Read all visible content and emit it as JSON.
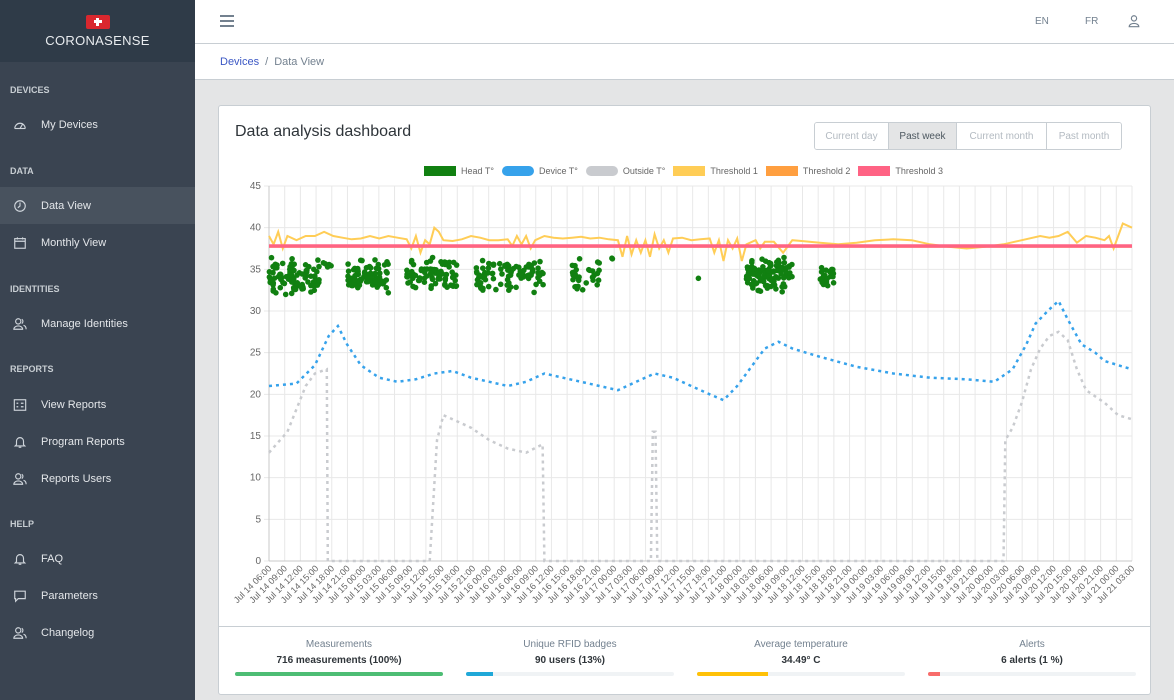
{
  "app": {
    "brand": "CORONASENSE"
  },
  "sidebar": {
    "sections": [
      {
        "title": "DEVICES",
        "items": [
          {
            "label": "My Devices",
            "icon": "gauge-icon"
          }
        ]
      },
      {
        "title": "DATA",
        "items": [
          {
            "label": "Data View",
            "icon": "clock-icon",
            "active": true
          },
          {
            "label": "Monthly View",
            "icon": "calendar-icon"
          }
        ]
      },
      {
        "title": "IDENTITIES",
        "items": [
          {
            "label": "Manage Identities",
            "icon": "users-icon"
          }
        ]
      },
      {
        "title": "REPORTS",
        "items": [
          {
            "label": "View Reports",
            "icon": "grid-icon"
          },
          {
            "label": "Program Reports",
            "icon": "bell-icon"
          },
          {
            "label": "Reports Users",
            "icon": "users-icon"
          }
        ]
      },
      {
        "title": "HELP",
        "items": [
          {
            "label": "FAQ",
            "icon": "bell-icon"
          },
          {
            "label": "Parameters",
            "icon": "chat-icon"
          },
          {
            "label": "Changelog",
            "icon": "users-icon"
          }
        ]
      }
    ]
  },
  "header": {
    "lang_en": "EN",
    "lang_fr": "FR"
  },
  "breadcrumb": {
    "link": "Devices",
    "separator": "/",
    "current": "Data View"
  },
  "dashboard": {
    "title": "Data analysis dashboard",
    "periods": [
      {
        "label": "Current day",
        "active": false
      },
      {
        "label": "Past week",
        "active": true
      },
      {
        "label": "Current month",
        "active": false
      },
      {
        "label": "Past month",
        "active": false
      }
    ]
  },
  "chart_data": {
    "type": "line",
    "ylim": [
      0,
      45
    ],
    "yticks": [
      0,
      5,
      10,
      15,
      20,
      25,
      30,
      35,
      40,
      45
    ],
    "grid": true,
    "legend_position": "top",
    "x_categories": [
      "Jul 14 06:00",
      "Jul 14 09:00",
      "Jul 14 12:00",
      "Jul 14 15:00",
      "Jul 14 18:00",
      "Jul 14 21:00",
      "Jul 15 00:00",
      "Jul 15 03:00",
      "Jul 15 06:00",
      "Jul 15 09:00",
      "Jul 15 12:00",
      "Jul 15 15:00",
      "Jul 15 18:00",
      "Jul 15 21:00",
      "Jul 16 00:00",
      "Jul 16 03:00",
      "Jul 16 06:00",
      "Jul 16 09:00",
      "Jul 16 12:00",
      "Jul 16 15:00",
      "Jul 16 18:00",
      "Jul 16 21:00",
      "Jul 17 00:00",
      "Jul 17 03:00",
      "Jul 17 06:00",
      "Jul 17 09:00",
      "Jul 17 12:00",
      "Jul 17 15:00",
      "Jul 17 18:00",
      "Jul 17 21:00",
      "Jul 18 00:00",
      "Jul 18 03:00",
      "Jul 18 06:00",
      "Jul 18 09:00",
      "Jul 18 12:00",
      "Jul 18 15:00",
      "Jul 18 18:00",
      "Jul 18 21:00",
      "Jul 19 00:00",
      "Jul 19 03:00",
      "Jul 19 06:00",
      "Jul 19 09:00",
      "Jul 19 12:00",
      "Jul 19 15:00",
      "Jul 19 18:00",
      "Jul 19 21:00",
      "Jul 20 00:00",
      "Jul 20 03:00",
      "Jul 20 06:00",
      "Jul 20 09:00",
      "Jul 20 12:00",
      "Jul 20 15:00",
      "Jul 20 18:00",
      "Jul 20 21:00",
      "Jul 21 00:00",
      "Jul 21 03:00"
    ],
    "series": [
      {
        "name": "Head T°",
        "color": "#118011",
        "style": "points",
        "clusters": [
          [
            0,
            5.5,
            34.2,
            2.2,
            90
          ],
          [
            5.8,
            6.8,
            35.5,
            1.2,
            6
          ],
          [
            8.6,
            13,
            34.3,
            2.0,
            85
          ],
          [
            15,
            20.5,
            34.5,
            2.0,
            80
          ],
          [
            22.5,
            30,
            34.3,
            2.0,
            90
          ],
          [
            33,
            36,
            34.3,
            2.0,
            30
          ],
          [
            37,
            37.5,
            36.5,
            0.3,
            2
          ],
          [
            46,
            47,
            34,
            0.3,
            1
          ],
          [
            52,
            57,
            34.5,
            2.2,
            110
          ],
          [
            60,
            61.5,
            34,
            1.5,
            25
          ]
        ]
      },
      {
        "name": "Device T°",
        "color": "#36a2eb",
        "style": "dashed",
        "values": [
          [
            0,
            21
          ],
          [
            3,
            21.3
          ],
          [
            5,
            23.5
          ],
          [
            6.5,
            27
          ],
          [
            7.5,
            28.2
          ],
          [
            8.5,
            26
          ],
          [
            10,
            23.5
          ],
          [
            12,
            22
          ],
          [
            14,
            21.5
          ],
          [
            16,
            21.8
          ],
          [
            18,
            22.5
          ],
          [
            20,
            22.8
          ],
          [
            22,
            22
          ],
          [
            24,
            21.5
          ],
          [
            26,
            21
          ],
          [
            28,
            21.5
          ],
          [
            30,
            22.5
          ],
          [
            32,
            22
          ],
          [
            34,
            21.5
          ],
          [
            36,
            21
          ],
          [
            38,
            20.5
          ],
          [
            40,
            21.5
          ],
          [
            42,
            22.5
          ],
          [
            44,
            22
          ],
          [
            46,
            21
          ],
          [
            48,
            20
          ],
          [
            49.5,
            19.3
          ],
          [
            51,
            21
          ],
          [
            52,
            22.5
          ],
          [
            54,
            25.5
          ],
          [
            55.5,
            26.3
          ],
          [
            57,
            25.5
          ],
          [
            60,
            24.5
          ],
          [
            64,
            23.3
          ],
          [
            68,
            22.5
          ],
          [
            72,
            22
          ],
          [
            76,
            21.8
          ],
          [
            79,
            21.5
          ],
          [
            81,
            23
          ],
          [
            82.5,
            26
          ],
          [
            83.5,
            28.5
          ],
          [
            85,
            30.2
          ],
          [
            86,
            31.2
          ],
          [
            87,
            29
          ],
          [
            88.5,
            26
          ],
          [
            90,
            25
          ],
          [
            91,
            24
          ],
          [
            92.5,
            23.5
          ],
          [
            94,
            23
          ]
        ]
      },
      {
        "name": "Outside T°",
        "color": "#c9cbcf",
        "style": "dashed",
        "values": [
          [
            0,
            13
          ],
          [
            2,
            15.5
          ],
          [
            4,
            21
          ],
          [
            5,
            22.5
          ],
          [
            6.3,
            23
          ],
          [
            6.4,
            0
          ],
          [
            17.5,
            0
          ],
          [
            18.3,
            14.5
          ],
          [
            19,
            17.5
          ],
          [
            20,
            17
          ],
          [
            22,
            16
          ],
          [
            24,
            14.5
          ],
          [
            26,
            13.5
          ],
          [
            28,
            13
          ],
          [
            29.8,
            14
          ],
          [
            30,
            0
          ],
          [
            41.6,
            0
          ],
          [
            41.8,
            15.5
          ],
          [
            42.1,
            15.5
          ],
          [
            42.3,
            0
          ],
          [
            80,
            0
          ],
          [
            80.2,
            14.5
          ],
          [
            81,
            16
          ],
          [
            82,
            19
          ],
          [
            83,
            23
          ],
          [
            84,
            25.5
          ],
          [
            85,
            27
          ],
          [
            86,
            27.5
          ],
          [
            87,
            26.5
          ],
          [
            88,
            23
          ],
          [
            89,
            20.5
          ],
          [
            91,
            19
          ],
          [
            92.5,
            17.5
          ],
          [
            94,
            17
          ]
        ]
      },
      {
        "name": "Threshold 1",
        "color": "#ffcd56",
        "style": "solid",
        "values": [
          [
            0,
            39
          ],
          [
            0.5,
            38
          ],
          [
            1,
            39.5
          ],
          [
            1.5,
            37.5
          ],
          [
            2,
            39
          ],
          [
            3,
            38.5
          ],
          [
            4,
            39
          ],
          [
            5,
            39
          ],
          [
            6,
            39.5
          ],
          [
            7,
            39
          ],
          [
            8,
            38.8
          ],
          [
            9,
            38.6
          ],
          [
            10,
            38.7
          ],
          [
            11,
            39
          ],
          [
            12,
            38.7
          ],
          [
            13,
            39
          ],
          [
            14,
            38.8
          ],
          [
            15,
            38.6
          ],
          [
            15.5,
            37.5
          ],
          [
            16,
            39
          ],
          [
            16.5,
            37
          ],
          [
            17,
            38.5
          ],
          [
            17.5,
            38
          ],
          [
            18,
            40
          ],
          [
            18.5,
            39.5
          ],
          [
            19,
            38.5
          ],
          [
            20,
            38.4
          ],
          [
            21,
            38.6
          ],
          [
            22,
            39
          ],
          [
            23,
            38.8
          ],
          [
            24,
            38.5
          ],
          [
            25,
            38.5
          ],
          [
            26,
            38.6
          ],
          [
            26.5,
            37.8
          ],
          [
            27,
            39
          ],
          [
            27.5,
            38
          ],
          [
            28,
            39
          ],
          [
            28.5,
            37.5
          ],
          [
            29,
            38.5
          ],
          [
            30,
            39
          ],
          [
            31,
            38.8
          ],
          [
            32,
            38.7
          ],
          [
            33,
            38.8
          ],
          [
            34,
            38.9
          ],
          [
            35,
            38.7
          ],
          [
            36,
            38.8
          ],
          [
            37,
            38.6
          ],
          [
            38,
            38.5
          ],
          [
            38.5,
            36.5
          ],
          [
            39,
            39
          ],
          [
            39.5,
            36.8
          ],
          [
            40,
            38.5
          ],
          [
            40.5,
            37
          ],
          [
            41,
            38.5
          ],
          [
            41.5,
            36.5
          ],
          [
            42,
            39.2
          ],
          [
            42.5,
            37.5
          ],
          [
            43,
            38.5
          ],
          [
            43.5,
            37
          ],
          [
            44,
            38.7
          ],
          [
            45,
            38.8
          ],
          [
            46,
            38.5
          ],
          [
            47,
            38.6
          ],
          [
            48,
            38.7
          ],
          [
            48.5,
            37
          ],
          [
            49,
            38.5
          ],
          [
            49.5,
            36
          ],
          [
            50,
            38.5
          ],
          [
            50.5,
            37.5
          ],
          [
            51,
            38.7
          ],
          [
            51.5,
            36
          ],
          [
            52,
            38
          ],
          [
            53,
            38.5
          ],
          [
            53.5,
            37.5
          ],
          [
            54,
            38.3
          ],
          [
            55,
            38.3
          ],
          [
            56,
            37
          ],
          [
            57,
            38.5
          ],
          [
            58,
            38.4
          ],
          [
            60,
            38.2
          ],
          [
            62,
            38
          ],
          [
            64,
            38.2
          ],
          [
            66,
            38.5
          ],
          [
            68,
            38.6
          ],
          [
            70,
            38.5
          ],
          [
            72,
            38
          ],
          [
            74,
            37.7
          ],
          [
            76,
            37.5
          ],
          [
            78,
            37.7
          ],
          [
            80,
            38
          ],
          [
            82,
            38.5
          ],
          [
            84,
            39
          ],
          [
            85,
            38.8
          ],
          [
            86,
            39
          ],
          [
            87,
            39.5
          ],
          [
            88,
            38.2
          ],
          [
            89,
            39
          ],
          [
            90,
            38.8
          ],
          [
            91,
            38.5
          ],
          [
            91.5,
            39
          ],
          [
            92,
            37.5
          ],
          [
            92.5,
            39
          ],
          [
            93,
            40.5
          ],
          [
            94,
            40
          ]
        ]
      },
      {
        "name": "Threshold 2",
        "color": "#ff9f40",
        "style": "solid",
        "values": [
          [
            0,
            37.7
          ],
          [
            94,
            37.7
          ]
        ]
      },
      {
        "name": "Threshold 3",
        "color": "#ff6384",
        "style": "solid",
        "values": [
          [
            0,
            37.8
          ],
          [
            94,
            37.8
          ]
        ]
      }
    ]
  },
  "stats": [
    {
      "label": "Measurements",
      "value": "716 measurements (100%)",
      "fill_pct": 100,
      "color": "#4dbd74"
    },
    {
      "label": "Unique RFID badges",
      "value": "90 users (13%)",
      "fill_pct": 13,
      "color": "#20a8d8"
    },
    {
      "label": "Average temperature",
      "value": "34.49° C",
      "fill_pct": 34,
      "color": "#ffc107"
    },
    {
      "label": "Alerts",
      "value": "6 alerts (1 %)",
      "fill_pct": 6,
      "color": "#f86c6b"
    }
  ]
}
